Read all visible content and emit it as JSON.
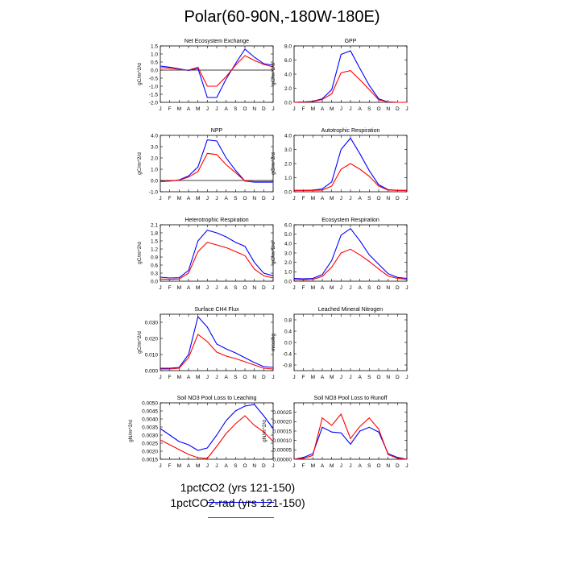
{
  "title": "Polar(60-90N,-180W-180E)",
  "legend": {
    "series": [
      {
        "label": "1pctCO2 (yrs 121-150)",
        "color": "#0000ff"
      },
      {
        "label": "1pctCO2-rad (yrs 121-150)",
        "color": "#ff0000"
      }
    ]
  },
  "chart_data": [
    {
      "type": "line",
      "title": "Net Ecosystem Exchange",
      "ylabel": "gC/m^2/d",
      "categories": [
        "J",
        "F",
        "M",
        "A",
        "M",
        "J",
        "J",
        "A",
        "S",
        "O",
        "N",
        "D",
        "J"
      ],
      "ylim": [
        -2.0,
        1.5
      ],
      "yticks": [
        -2.0,
        -1.5,
        -1.0,
        -0.5,
        0.0,
        0.5,
        1.0,
        1.5
      ],
      "ytick_labels": [
        "-2.0",
        "-1.5",
        "-1.0",
        "-0.5",
        "0.0",
        "0.5",
        "1.0",
        "1.5"
      ],
      "zero_line": true,
      "series": [
        {
          "color": "#0000ff",
          "values": [
            0.25,
            0.18,
            0.08,
            -0.02,
            0.1,
            -1.7,
            -1.7,
            -0.55,
            0.4,
            1.3,
            0.8,
            0.4,
            0.3
          ]
        },
        {
          "color": "#ff0000",
          "values": [
            0.15,
            0.12,
            0.05,
            0.0,
            0.18,
            -1.0,
            -1.0,
            -0.4,
            0.3,
            0.9,
            0.6,
            0.35,
            0.2
          ]
        }
      ]
    },
    {
      "type": "line",
      "title": "GPP",
      "ylabel": "gC/m^2/d",
      "categories": [
        "J",
        "F",
        "M",
        "A",
        "M",
        "J",
        "J",
        "A",
        "S",
        "O",
        "N",
        "D",
        "J"
      ],
      "ylim": [
        0.0,
        8.0
      ],
      "yticks": [
        0,
        2,
        4,
        6,
        8
      ],
      "ytick_labels": [
        "0.0",
        "2.0",
        "4.0",
        "6.0",
        "8.0"
      ],
      "zero_line": false,
      "series": [
        {
          "color": "#0000ff",
          "values": [
            0.0,
            0.05,
            0.15,
            0.5,
            1.8,
            6.8,
            7.3,
            4.8,
            2.4,
            0.5,
            0.05,
            0.0,
            0.0
          ]
        },
        {
          "color": "#ff0000",
          "values": [
            0.0,
            0.05,
            0.1,
            0.4,
            1.2,
            4.2,
            4.5,
            3.2,
            1.8,
            0.35,
            0.05,
            0.0,
            0.0
          ]
        }
      ]
    },
    {
      "type": "line",
      "title": "NPP",
      "ylabel": "gC/m^2/d",
      "categories": [
        "J",
        "F",
        "M",
        "A",
        "M",
        "J",
        "J",
        "A",
        "S",
        "O",
        "N",
        "D",
        "J"
      ],
      "ylim": [
        -1.0,
        4.0
      ],
      "yticks": [
        -1,
        0,
        1,
        2,
        3,
        4
      ],
      "ytick_labels": [
        "-1.0",
        "0.0",
        "1.0",
        "2.0",
        "3.0",
        "4.0"
      ],
      "zero_line": true,
      "series": [
        {
          "color": "#0000ff",
          "values": [
            -0.1,
            -0.05,
            0.05,
            0.4,
            1.2,
            3.6,
            3.5,
            2.0,
            0.9,
            -0.05,
            -0.15,
            -0.15,
            -0.15
          ]
        },
        {
          "color": "#ff0000",
          "values": [
            -0.1,
            -0.05,
            0.03,
            0.3,
            0.8,
            2.4,
            2.3,
            1.4,
            0.7,
            -0.05,
            -0.1,
            -0.1,
            -0.1
          ]
        }
      ]
    },
    {
      "type": "line",
      "title": "Autotrophic Respiration",
      "ylabel": "gC/m^2/d",
      "categories": [
        "J",
        "F",
        "M",
        "A",
        "M",
        "J",
        "J",
        "A",
        "S",
        "O",
        "N",
        "D",
        "J"
      ],
      "ylim": [
        0.0,
        4.0
      ],
      "yticks": [
        0,
        1,
        2,
        3,
        4
      ],
      "ytick_labels": [
        "0.0",
        "1.0",
        "2.0",
        "3.0",
        "4.0"
      ],
      "zero_line": false,
      "series": [
        {
          "color": "#0000ff",
          "values": [
            0.1,
            0.1,
            0.12,
            0.2,
            0.7,
            3.0,
            3.8,
            2.7,
            1.5,
            0.5,
            0.15,
            0.1,
            0.1
          ]
        },
        {
          "color": "#ff0000",
          "values": [
            0.1,
            0.1,
            0.1,
            0.12,
            0.4,
            1.6,
            2.0,
            1.6,
            1.1,
            0.4,
            0.12,
            0.1,
            0.1
          ]
        }
      ]
    },
    {
      "type": "line",
      "title": "Heterotrophic Respiration",
      "ylabel": "gC/m^2/d",
      "categories": [
        "J",
        "F",
        "M",
        "A",
        "M",
        "J",
        "J",
        "A",
        "S",
        "O",
        "N",
        "D",
        "J"
      ],
      "ylim": [
        0.0,
        2.1
      ],
      "yticks": [
        0,
        0.3,
        0.6,
        0.9,
        1.2,
        1.5,
        1.8,
        2.1
      ],
      "ytick_labels": [
        "0.0",
        "0.3",
        "0.6",
        "0.9",
        "1.2",
        "1.5",
        "1.8",
        "2.1"
      ],
      "zero_line": false,
      "series": [
        {
          "color": "#0000ff",
          "values": [
            0.15,
            0.12,
            0.13,
            0.4,
            1.5,
            1.9,
            1.8,
            1.65,
            1.45,
            1.3,
            0.7,
            0.3,
            0.2
          ]
        },
        {
          "color": "#ff0000",
          "values": [
            0.08,
            0.07,
            0.08,
            0.3,
            1.1,
            1.45,
            1.35,
            1.25,
            1.1,
            0.95,
            0.45,
            0.2,
            0.12
          ]
        }
      ]
    },
    {
      "type": "line",
      "title": "Ecosystem Respiration",
      "ylabel": "gC/m^2/d",
      "categories": [
        "J",
        "F",
        "M",
        "A",
        "M",
        "J",
        "J",
        "A",
        "S",
        "O",
        "N",
        "D",
        "J"
      ],
      "ylim": [
        0.0,
        6.0
      ],
      "yticks": [
        0,
        1,
        2,
        3,
        4,
        5,
        6
      ],
      "ytick_labels": [
        "0.0",
        "1.0",
        "2.0",
        "3.0",
        "4.0",
        "5.0",
        "6.0"
      ],
      "zero_line": false,
      "series": [
        {
          "color": "#0000ff",
          "values": [
            0.3,
            0.25,
            0.3,
            0.7,
            2.2,
            4.9,
            5.6,
            4.3,
            2.8,
            1.8,
            0.8,
            0.4,
            0.3
          ]
        },
        {
          "color": "#ff0000",
          "values": [
            0.2,
            0.15,
            0.2,
            0.5,
            1.5,
            3.0,
            3.4,
            2.8,
            2.1,
            1.3,
            0.55,
            0.3,
            0.2
          ]
        }
      ]
    },
    {
      "type": "line",
      "title": "Surface CH4 Flux",
      "ylabel": "gC/m^2/d",
      "categories": [
        "J",
        "F",
        "M",
        "A",
        "M",
        "J",
        "J",
        "A",
        "S",
        "O",
        "N",
        "D",
        "J"
      ],
      "ylim": [
        0.0,
        0.035
      ],
      "yticks": [
        0,
        0.01,
        0.02,
        0.03
      ],
      "ytick_labels": [
        "0.000",
        "0.010",
        "0.020",
        "0.030"
      ],
      "zero_line": false,
      "series": [
        {
          "color": "#0000ff",
          "values": [
            0.0015,
            0.0015,
            0.002,
            0.01,
            0.0335,
            0.027,
            0.0165,
            0.0135,
            0.011,
            0.008,
            0.005,
            0.0025,
            0.002
          ]
        },
        {
          "color": "#ff0000",
          "values": [
            0.001,
            0.001,
            0.0015,
            0.008,
            0.0225,
            0.018,
            0.0115,
            0.009,
            0.0075,
            0.0055,
            0.0035,
            0.0015,
            0.001
          ]
        }
      ]
    },
    {
      "type": "line",
      "title": "Leached Mineral Nitrogen",
      "ylabel": "missing",
      "categories": [
        "J",
        "F",
        "M",
        "A",
        "M",
        "J",
        "J",
        "A",
        "S",
        "O",
        "N",
        "D",
        "J"
      ],
      "ylim": [
        -1.0,
        1.0
      ],
      "yticks": [
        -0.8,
        -0.4,
        0,
        0.4,
        0.8
      ],
      "ytick_labels": [
        "-0.8",
        "-0.4",
        "0.0",
        "0.4",
        "0.8"
      ],
      "zero_line": false,
      "series": []
    },
    {
      "type": "line",
      "title": "Soil NO3 Pool Loss to Leaching",
      "ylabel": "gN/m^2/d",
      "categories": [
        "J",
        "F",
        "M",
        "A",
        "M",
        "J",
        "J",
        "A",
        "S",
        "O",
        "N",
        "D",
        "J"
      ],
      "ylim": [
        0.0015,
        0.005
      ],
      "yticks": [
        0.0015,
        0.002,
        0.0025,
        0.003,
        0.0035,
        0.004,
        0.0045,
        0.005
      ],
      "ytick_labels": [
        "0.0015",
        "0.0020",
        "0.0025",
        "0.0030",
        "0.0035",
        "0.0040",
        "0.0045",
        "0.0050"
      ],
      "zero_line": false,
      "series": [
        {
          "color": "#0000ff",
          "values": [
            0.0034,
            0.003,
            0.0026,
            0.0024,
            0.00205,
            0.0022,
            0.003,
            0.0039,
            0.0045,
            0.0048,
            0.0049,
            0.0042,
            0.0034
          ]
        },
        {
          "color": "#ff0000",
          "values": [
            0.0027,
            0.0024,
            0.0021,
            0.0018,
            0.0016,
            0.00155,
            0.0023,
            0.0031,
            0.0037,
            0.0042,
            0.0036,
            0.0032,
            0.0026
          ]
        }
      ]
    },
    {
      "type": "line",
      "title": "Soil NO3 Pool Loss to Runoff",
      "ylabel": "gN/m^2/d",
      "categories": [
        "J",
        "F",
        "M",
        "A",
        "M",
        "J",
        "J",
        "A",
        "S",
        "O",
        "N",
        "D",
        "J"
      ],
      "ylim": [
        0.0,
        0.0003
      ],
      "yticks": [
        0,
        5e-05,
        0.0001,
        0.00015,
        0.0002,
        0.00025
      ],
      "ytick_labels": [
        "0.00000",
        "0.00005",
        "0.00010",
        "0.00015",
        "0.00020",
        "0.00025"
      ],
      "zero_line": false,
      "series": [
        {
          "color": "#0000ff",
          "values": [
            0.0,
            1e-05,
            3e-05,
            0.00017,
            0.000145,
            0.00014,
            8e-05,
            0.00015,
            0.00017,
            0.000145,
            3e-05,
            1e-05,
            0.0
          ]
        },
        {
          "color": "#ff0000",
          "values": [
            0.0,
            5e-06,
            2e-05,
            0.00022,
            0.00018,
            0.00024,
            0.00011,
            0.000175,
            0.00022,
            0.00016,
            2.5e-05,
            5e-06,
            0.0
          ]
        }
      ]
    }
  ]
}
